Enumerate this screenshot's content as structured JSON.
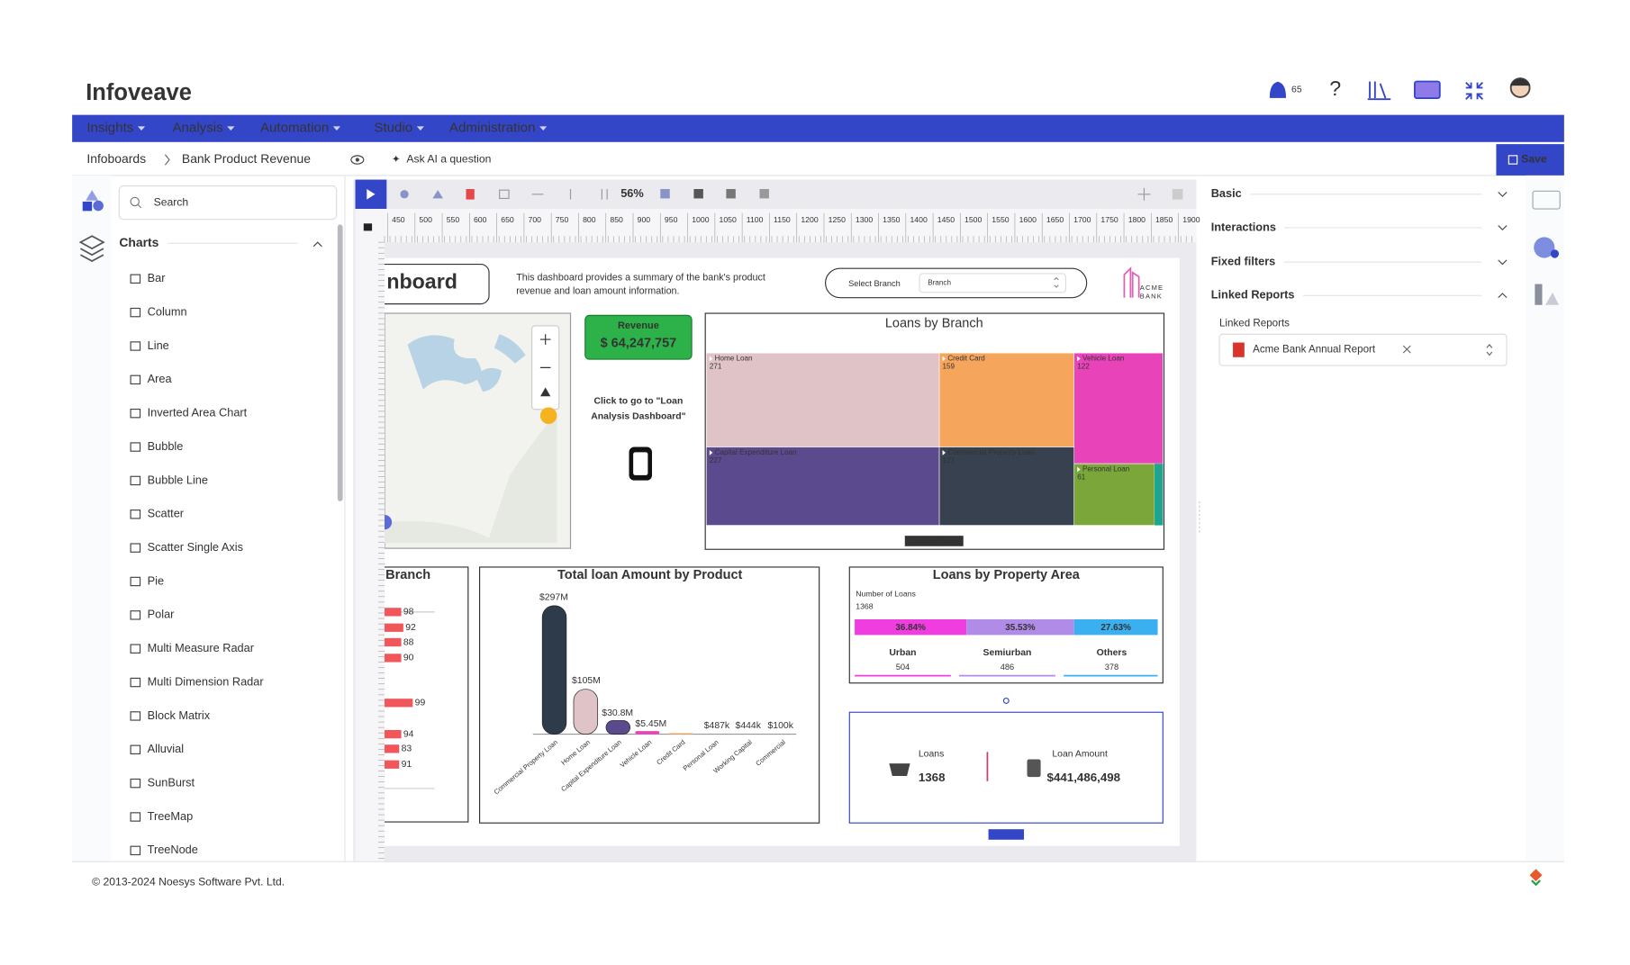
{
  "header": {
    "logo": "Infoveave",
    "notifications": "65"
  },
  "nav": [
    "Insights",
    "Analysis",
    "Automation",
    "Studio",
    "Administration"
  ],
  "breadcrumb": [
    "Infoboards",
    "Bank Product Revenue"
  ],
  "ask_ai": "Ask AI a question",
  "save": "Save",
  "sidebar": {
    "search_placeholder": "Search",
    "section": "Charts",
    "items": [
      "Bar",
      "Column",
      "Line",
      "Area",
      "Inverted Area Chart",
      "Bubble",
      "Bubble Line",
      "Scatter",
      "Scatter Single Axis",
      "Pie",
      "Polar",
      "Multi Measure Radar",
      "Multi Dimension Radar",
      "Block Matrix",
      "Alluvial",
      "SunBurst",
      "TreeMap",
      "TreeNode"
    ]
  },
  "toolbar": {
    "zoom": "56%"
  },
  "ruler": [
    450,
    500,
    550,
    600,
    650,
    700,
    750,
    800,
    850,
    900,
    950,
    1000,
    1050,
    1100,
    1150,
    1200,
    1250,
    1300,
    1350,
    1400,
    1450,
    1500,
    1550,
    1600,
    1650,
    1700,
    1750,
    1800,
    1850,
    1900
  ],
  "dashboard": {
    "title": "nboard",
    "description": [
      "This dashboard provides a summary of the bank's product",
      "revenue and loan amount information."
    ],
    "branch_filter": {
      "label": "Select Branch",
      "placeholder": "Branch"
    },
    "brand": [
      "ACME",
      "BANK"
    ],
    "revenue": {
      "label": "Revenue",
      "value": "$ 64,247,757"
    },
    "link_text": [
      "Click to go to \"Loan",
      "Analysis Dashboard\""
    ],
    "loans_by_branch": {
      "title": "Loans by Branch",
      "tiles": [
        {
          "name": "Home Loan",
          "value": 271
        },
        {
          "name": "Credit Card",
          "value": 159
        },
        {
          "name": "Vehicle Loan",
          "value": 122
        },
        {
          "name": "Capital Expenditure Loan",
          "value": 227
        },
        {
          "name": "Commercial Property Loan",
          "value": 127
        },
        {
          "name": "Personal Loan",
          "value": 61
        }
      ],
      "legend": "Number of Loans"
    },
    "branch_panel": {
      "title": "Branch",
      "values": [
        98,
        92,
        88,
        90,
        99,
        94,
        83,
        91
      ]
    },
    "loan_amount": {
      "title": "Total loan Amount by Product",
      "labels": [
        "$297M",
        "$105M",
        "$30.8M",
        "$5.45M",
        "$487k",
        "$444k",
        "$100k"
      ],
      "categories": [
        "Commercial Property Loan",
        "Home Loan",
        "Capital Expenditure Loan",
        "Vehicle Loan",
        "Credit Card",
        "Personal Loan",
        "Working Capital",
        "Commercial"
      ]
    },
    "property_area": {
      "title": "Loans by Property Area",
      "measure": "Number of Loans",
      "total": 1368,
      "shares": [
        "36.84%",
        "35.53%",
        "27.63%"
      ],
      "areas": [
        {
          "name": "Urban",
          "value": 504
        },
        {
          "name": "Semiurban",
          "value": 486
        },
        {
          "name": "Others",
          "value": 378
        }
      ]
    },
    "kpi": {
      "loans_label": "Loans",
      "loans": 1368,
      "amount_label": "Loan Amount",
      "amount": "$441,486,498"
    }
  },
  "properties": {
    "sections": [
      "Basic",
      "Interactions",
      "Fixed filters",
      "Linked Reports"
    ],
    "linked_reports_label": "Linked Reports",
    "linked_report": "Acme Bank Annual Report"
  },
  "footer": "© 2013-2024 Noesys Software Pvt. Ltd."
}
